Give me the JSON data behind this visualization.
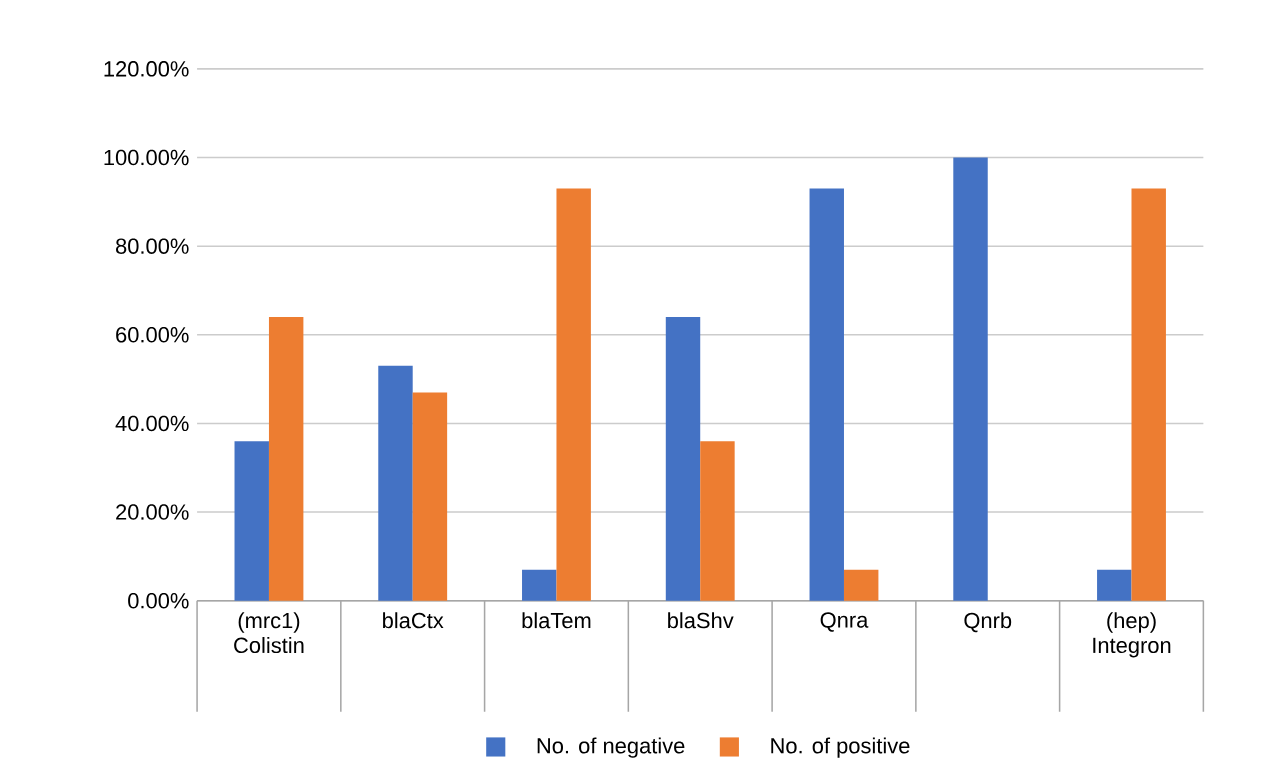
{
  "chart_data": {
    "type": "bar",
    "categories": [
      "(mrc1) Colistin",
      "blaCtx",
      "blaTem",
      "blaShv",
      "Qnra",
      "Qnrb",
      "(hep) Integron"
    ],
    "series": [
      {
        "name": "No. of negative",
        "color": "#4472c4",
        "values": [
          36,
          53,
          7,
          64,
          93,
          100,
          7
        ]
      },
      {
        "name": "No. of positive",
        "color": "#ed7d31",
        "values": [
          64,
          47,
          93,
          36,
          7,
          0,
          93
        ]
      }
    ],
    "ylim": [
      0,
      120
    ],
    "yticks": [
      {
        "value": 0,
        "label": "0.00%"
      },
      {
        "value": 20,
        "label": "20.00%"
      },
      {
        "value": 40,
        "label": "40.00%"
      },
      {
        "value": 60,
        "label": "60.00%"
      },
      {
        "value": 80,
        "label": "80.00%"
      },
      {
        "value": 100,
        "label": "100.00%"
      },
      {
        "value": 120,
        "label": "120.00%"
      }
    ],
    "grid": "y",
    "legend": "bottom"
  }
}
